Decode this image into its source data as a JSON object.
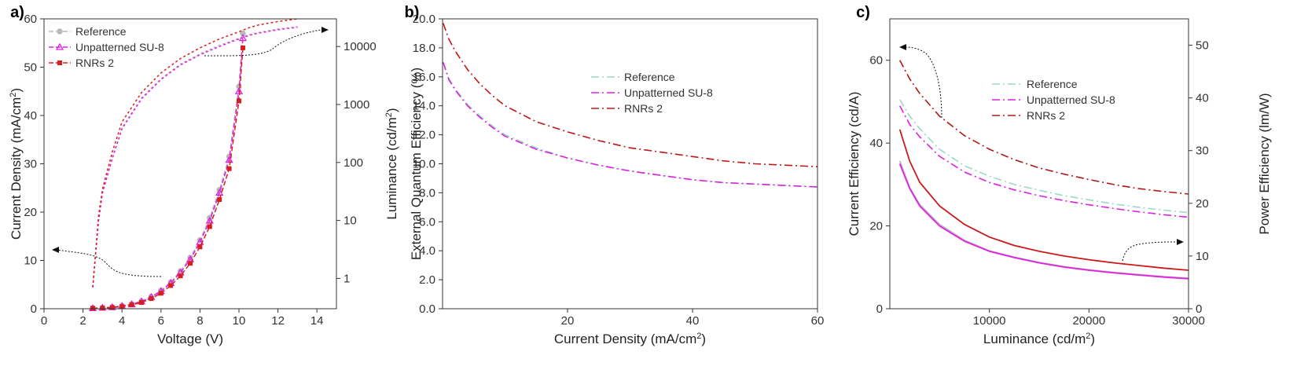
{
  "chart_data": [
    {
      "panel": "a)",
      "type": "line",
      "xlabel": "Voltage (V)",
      "ylabel": "Current Density (mA/cm²)",
      "y2label": "Luminance (cd/m²)",
      "xlim": [
        0,
        15
      ],
      "ylim": [
        0,
        60
      ],
      "y2lim_log": [
        0.3,
        30000
      ],
      "xticks": [
        "0",
        "2",
        "4",
        "6",
        "8",
        "10",
        "12",
        "14"
      ],
      "yticks": [
        "0",
        "10",
        "20",
        "30",
        "40",
        "50",
        "60"
      ],
      "y2ticks": [
        "1",
        "10",
        "100",
        "1000",
        "10000"
      ],
      "legend_position": "top-left",
      "series": [
        {
          "name": "Reference",
          "color": "#b8b8b8",
          "marker": "circle",
          "axis": "left",
          "x": [
            2.5,
            3,
            3.5,
            4,
            4.5,
            5,
            5.5,
            6,
            6.5,
            7,
            7.5,
            8,
            8.5,
            9,
            9.5,
            10,
            10.2
          ],
          "y": [
            0.1,
            0.2,
            0.35,
            0.6,
            1.0,
            1.6,
            2.5,
            3.8,
            5.5,
            7.8,
            10.6,
            14.2,
            18.8,
            24.6,
            31.5,
            46.0,
            57.0
          ]
        },
        {
          "name": "Unpatterned SU-8",
          "color": "#e020e0",
          "marker": "triangle",
          "axis": "left",
          "x": [
            2.5,
            3,
            3.5,
            4,
            4.5,
            5,
            5.5,
            6,
            6.5,
            7,
            7.5,
            8,
            8.5,
            9,
            9.5,
            10,
            10.2
          ],
          "y": [
            0.1,
            0.2,
            0.3,
            0.55,
            0.9,
            1.5,
            2.4,
            3.6,
            5.3,
            7.5,
            10.2,
            13.8,
            18.2,
            24.0,
            30.8,
            45.0,
            56.0
          ]
        },
        {
          "name": "RNRs 2",
          "color": "#d62020",
          "marker": "square",
          "axis": "left",
          "x": [
            2.5,
            3,
            3.5,
            4,
            4.5,
            5,
            5.5,
            6,
            6.5,
            7,
            7.5,
            8,
            8.5,
            9,
            9.5,
            10,
            10.2
          ],
          "y": [
            0.1,
            0.15,
            0.25,
            0.45,
            0.8,
            1.3,
            2.1,
            3.2,
            4.8,
            6.8,
            9.4,
            12.8,
            17.0,
            22.6,
            29.0,
            43.0,
            54.0
          ]
        },
        {
          "name": "Luminance Reference",
          "color": "#b8b8b8",
          "axis": "right",
          "x": [
            2.5,
            2.8,
            3,
            3.5,
            4,
            5,
            6,
            7,
            8,
            9,
            10,
            10.5,
            11,
            12,
            13
          ],
          "y": [
            0.7,
            10,
            30,
            120,
            400,
            1300,
            2800,
            5000,
            7500,
            10500,
            14000,
            16000,
            17500,
            20000,
            22000
          ]
        },
        {
          "name": "Luminance Unpatterned SU-8",
          "color": "#e020e0",
          "axis": "right",
          "x": [
            2.5,
            2.8,
            3,
            3.5,
            4,
            5,
            6,
            7,
            8,
            9,
            10,
            10.5,
            11,
            12,
            13
          ],
          "y": [
            0.7,
            10,
            30,
            115,
            380,
            1250,
            2700,
            4800,
            7200,
            10000,
            13500,
            15500,
            17000,
            19500,
            21500
          ]
        },
        {
          "name": "Luminance RNRs 2",
          "color": "#d62020",
          "axis": "right",
          "x": [
            2.5,
            2.8,
            3,
            3.5,
            4,
            5,
            6,
            7,
            8,
            9,
            10,
            10.5,
            11,
            12,
            13
          ],
          "y": [
            0.7,
            12,
            35,
            150,
            500,
            1600,
            3500,
            6200,
            9500,
            13500,
            18000,
            21000,
            23500,
            27000,
            30000
          ]
        }
      ]
    },
    {
      "panel": "b)",
      "type": "line",
      "xlabel": "Current Density (mA/cm²)",
      "ylabel": "External Quantum Efficiency (%)",
      "xlim": [
        0,
        60
      ],
      "ylim": [
        0,
        20
      ],
      "xticks": [
        "20",
        "40",
        "60"
      ],
      "yticks": [
        "0.0",
        "2.0",
        "4.0",
        "6.0",
        "8.0",
        "10.0",
        "12.0",
        "14.0",
        "16.0",
        "18.0",
        "20.0"
      ],
      "legend_position": "center",
      "series": [
        {
          "name": "Reference",
          "color": "#9cd8c8",
          "x": [
            0.1,
            1,
            2,
            4,
            6,
            8,
            10,
            15,
            20,
            25,
            30,
            35,
            40,
            45,
            50,
            55,
            60
          ],
          "y": [
            17.0,
            15.9,
            15.2,
            14.1,
            13.3,
            12.6,
            12.0,
            11.1,
            10.4,
            9.9,
            9.5,
            9.2,
            8.9,
            8.7,
            8.6,
            8.5,
            8.4
          ]
        },
        {
          "name": "Unpatterned SU-8",
          "color": "#e020e0",
          "x": [
            0.1,
            1,
            2,
            4,
            6,
            8,
            10,
            15,
            20,
            25,
            30,
            35,
            40,
            45,
            50,
            55,
            60
          ],
          "y": [
            17.0,
            15.8,
            15.1,
            14.0,
            13.2,
            12.5,
            11.9,
            11.0,
            10.4,
            9.9,
            9.5,
            9.2,
            8.9,
            8.7,
            8.6,
            8.5,
            8.4
          ]
        },
        {
          "name": "RNRs 2",
          "color": "#c01818",
          "x": [
            0.1,
            1,
            2,
            4,
            6,
            8,
            10,
            15,
            20,
            25,
            30,
            35,
            40,
            45,
            50,
            55,
            60
          ],
          "y": [
            19.7,
            18.6,
            17.8,
            16.5,
            15.5,
            14.7,
            14.0,
            12.9,
            12.2,
            11.6,
            11.1,
            10.8,
            10.5,
            10.2,
            10.0,
            9.9,
            9.8
          ]
        }
      ]
    },
    {
      "panel": "c)",
      "type": "line",
      "xlabel": "Luminance (cd/m²)",
      "ylabel": "Current Efficiency (cd/A)",
      "y2label": "Power Efficiency (lm/W)",
      "xlim": [
        0,
        30000
      ],
      "ylim": [
        0,
        70
      ],
      "y2lim": [
        0,
        55
      ],
      "xticks": [
        "10000",
        "20000",
        "30000"
      ],
      "yticks": [
        "0",
        "20",
        "40",
        "60"
      ],
      "y2ticks": [
        "0",
        "10",
        "20",
        "30",
        "40",
        "50"
      ],
      "legend_position": "top-right",
      "series": [
        {
          "name": "Reference",
          "color": "#9cd8c8",
          "axis": "left",
          "x": [
            1000,
            2000,
            3000,
            5000,
            7500,
            10000,
            12500,
            15000,
            17500,
            20000,
            22500,
            25000,
            27500,
            30000
          ],
          "y": [
            50.5,
            46.5,
            43.5,
            38.5,
            34.5,
            32.0,
            30.0,
            28.6,
            27.3,
            26.3,
            25.3,
            24.5,
            23.8,
            23.2
          ]
        },
        {
          "name": "Unpatterned SU-8",
          "color": "#e020e0",
          "axis": "left",
          "x": [
            1000,
            2000,
            3000,
            5000,
            7500,
            10000,
            12500,
            15000,
            17500,
            20000,
            22500,
            25000,
            27500,
            30000
          ],
          "y": [
            49.0,
            44.5,
            41.5,
            36.8,
            33.0,
            30.5,
            28.7,
            27.3,
            26.1,
            25.1,
            24.2,
            23.4,
            22.7,
            22.1
          ]
        },
        {
          "name": "RNRs 2",
          "color": "#b01818",
          "axis": "left",
          "x": [
            1000,
            2000,
            3000,
            5000,
            7500,
            10000,
            12500,
            15000,
            17500,
            20000,
            22500,
            25000,
            27500,
            30000
          ],
          "y": [
            60.0,
            55.5,
            52.0,
            46.5,
            41.8,
            38.5,
            36.0,
            34.0,
            32.5,
            31.2,
            30.0,
            29.0,
            28.3,
            27.7
          ]
        },
        {
          "name": "Power Efficiency Reference",
          "color": "#b8b8b8",
          "axis": "right",
          "x": [
            1000,
            2000,
            3000,
            5000,
            7500,
            10000,
            12500,
            15000,
            17500,
            20000,
            22500,
            25000,
            27500,
            30000
          ],
          "y": [
            28.0,
            23.0,
            19.8,
            16.0,
            13.0,
            11.0,
            9.8,
            8.8,
            8.0,
            7.4,
            6.9,
            6.5,
            6.1,
            5.8
          ]
        },
        {
          "name": "Power Efficiency Unpatterned SU-8",
          "color": "#e020e0",
          "axis": "right",
          "x": [
            1000,
            2000,
            3000,
            5000,
            7500,
            10000,
            12500,
            15000,
            17500,
            20000,
            22500,
            25000,
            27500,
            30000
          ],
          "y": [
            27.5,
            22.8,
            19.5,
            15.7,
            12.8,
            10.9,
            9.7,
            8.7,
            7.9,
            7.3,
            6.8,
            6.4,
            6.0,
            5.7
          ]
        },
        {
          "name": "Power Efficiency RNRs 2",
          "color": "#cc1a1a",
          "axis": "right",
          "x": [
            1000,
            2000,
            3000,
            5000,
            7500,
            10000,
            12500,
            15000,
            17500,
            20000,
            22500,
            25000,
            27500,
            30000
          ],
          "y": [
            34.0,
            28.0,
            24.0,
            19.5,
            16.0,
            13.6,
            12.0,
            10.9,
            10.0,
            9.3,
            8.7,
            8.2,
            7.7,
            7.3
          ]
        }
      ]
    }
  ]
}
